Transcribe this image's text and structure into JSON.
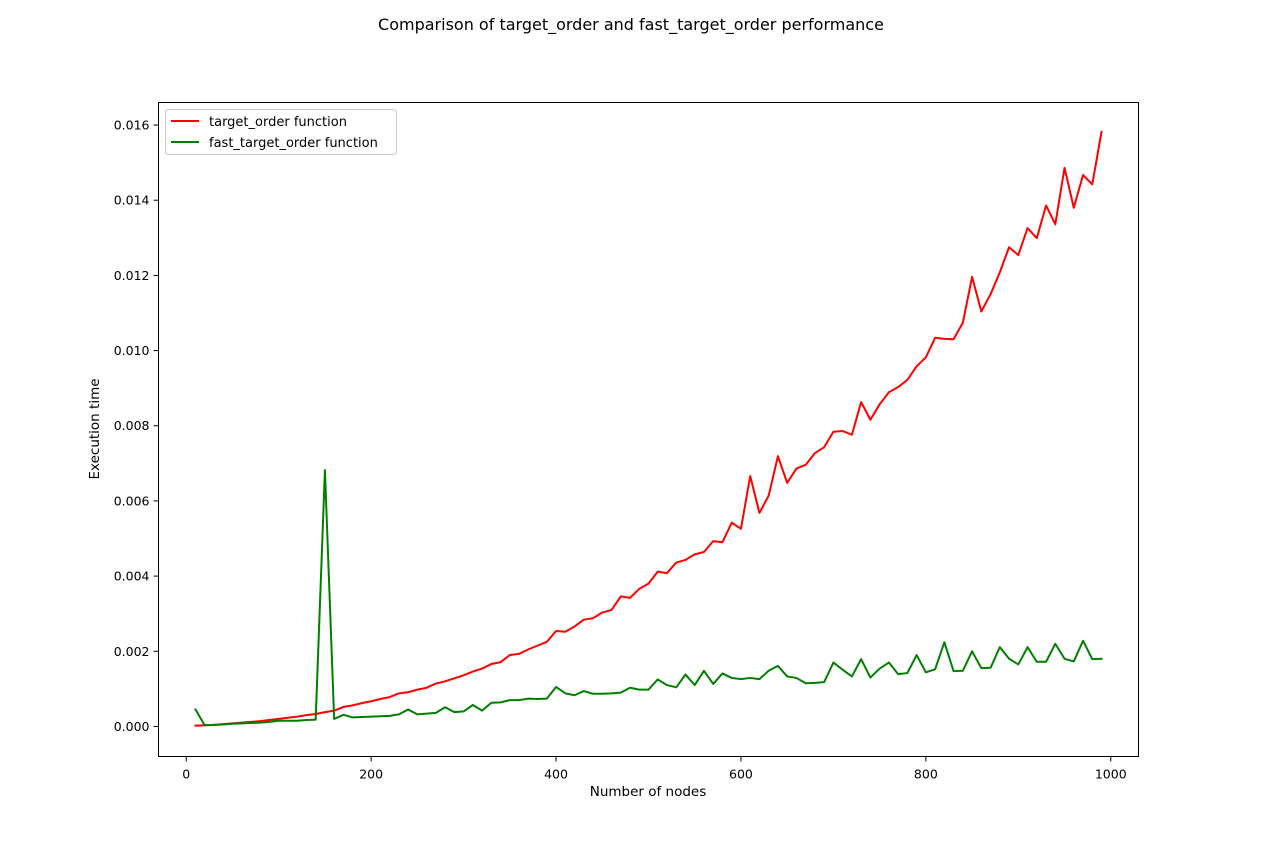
{
  "chart_data": {
    "type": "line",
    "title": "Comparison of target_order and fast_target_order performance",
    "xlabel": "Number of nodes",
    "ylabel": "Execution time",
    "xlim": [
      -30,
      1030
    ],
    "ylim": [
      -0.0008,
      0.0166
    ],
    "xticks": [
      0,
      200,
      400,
      600,
      800,
      1000
    ],
    "xtick_labels": [
      "0",
      "200",
      "400",
      "600",
      "800",
      "1000"
    ],
    "yticks": [
      0.0,
      0.002,
      0.004,
      0.006,
      0.008,
      0.01,
      0.012,
      0.014,
      0.016
    ],
    "ytick_labels": [
      "0.000",
      "0.002",
      "0.004",
      "0.006",
      "0.008",
      "0.010",
      "0.012",
      "0.014",
      "0.016"
    ],
    "grid": false,
    "legend_position": "upper-left",
    "x": [
      10,
      20,
      30,
      40,
      50,
      60,
      70,
      80,
      90,
      100,
      110,
      120,
      130,
      140,
      150,
      160,
      170,
      180,
      190,
      200,
      210,
      220,
      230,
      240,
      250,
      260,
      270,
      280,
      290,
      300,
      310,
      320,
      330,
      340,
      350,
      360,
      370,
      380,
      390,
      400,
      410,
      420,
      430,
      440,
      450,
      460,
      470,
      480,
      490,
      500,
      510,
      520,
      530,
      540,
      550,
      560,
      570,
      580,
      590,
      600,
      610,
      620,
      630,
      640,
      650,
      660,
      670,
      680,
      690,
      700,
      710,
      720,
      730,
      740,
      750,
      760,
      770,
      780,
      790,
      800,
      810,
      820,
      830,
      840,
      850,
      860,
      870,
      880,
      890,
      900,
      910,
      920,
      930,
      940,
      950,
      960,
      970,
      980,
      990
    ],
    "series": [
      {
        "name": "target_order function",
        "color": "#ff0000",
        "values": [
          2e-05,
          3e-05,
          4e-05,
          6e-05,
          8e-05,
          0.0001,
          0.00012,
          0.00014,
          0.00017,
          0.0002,
          0.00023,
          0.00026,
          0.0003,
          0.00033,
          0.00038,
          0.00042,
          0.00052,
          0.00056,
          0.00062,
          0.00067,
          0.00073,
          0.00078,
          0.00088,
          0.00091,
          0.00098,
          0.00103,
          0.00114,
          0.0012,
          0.00128,
          0.00136,
          0.00146,
          0.00154,
          0.00166,
          0.00171,
          0.0019,
          0.00193,
          0.00205,
          0.00215,
          0.00225,
          0.00254,
          0.00252,
          0.00266,
          0.00284,
          0.00288,
          0.00303,
          0.0031,
          0.00346,
          0.00342,
          0.00366,
          0.0038,
          0.00412,
          0.00408,
          0.00436,
          0.00443,
          0.00458,
          0.00464,
          0.00493,
          0.0049,
          0.00542,
          0.00526,
          0.00666,
          0.00568,
          0.00614,
          0.00719,
          0.00648,
          0.00686,
          0.00696,
          0.00727,
          0.00743,
          0.00784,
          0.00786,
          0.00776,
          0.00863,
          0.00816,
          0.00857,
          0.00889,
          0.00903,
          0.00922,
          0.00958,
          0.00982,
          0.01034,
          0.01031,
          0.0103,
          0.01074,
          0.01196,
          0.01104,
          0.0115,
          0.01208,
          0.01275,
          0.01254,
          0.01326,
          0.01299,
          0.01386,
          0.01336,
          0.01486,
          0.0138,
          0.01467,
          0.01442,
          0.01582
        ]
      },
      {
        "name": "fast_target_order function",
        "color": "#008000",
        "values": [
          0.00045,
          3e-05,
          4e-05,
          5e-05,
          7e-05,
          8e-05,
          9e-05,
          0.0001,
          0.00012,
          0.00015,
          0.00015,
          0.00015,
          0.00017,
          0.00018,
          0.00682,
          0.0002,
          0.00031,
          0.00024,
          0.00025,
          0.00026,
          0.00027,
          0.00028,
          0.00032,
          0.00045,
          0.00032,
          0.00034,
          0.00036,
          0.00051,
          0.00038,
          0.0004,
          0.00057,
          0.00042,
          0.00063,
          0.00064,
          0.0007,
          0.0007,
          0.00074,
          0.00073,
          0.00074,
          0.00105,
          0.00088,
          0.00083,
          0.00094,
          0.00087,
          0.00087,
          0.00088,
          0.0009,
          0.00103,
          0.00098,
          0.00098,
          0.00125,
          0.0011,
          0.00104,
          0.00138,
          0.0011,
          0.00148,
          0.00113,
          0.00141,
          0.00129,
          0.00126,
          0.00129,
          0.00126,
          0.00148,
          0.00161,
          0.00133,
          0.00129,
          0.00115,
          0.00116,
          0.00118,
          0.0017,
          0.00151,
          0.00133,
          0.00179,
          0.0013,
          0.00154,
          0.0017,
          0.00139,
          0.00142,
          0.0019,
          0.00144,
          0.00152,
          0.00224,
          0.00147,
          0.00148,
          0.002,
          0.00155,
          0.00156,
          0.00211,
          0.0018,
          0.00165,
          0.00211,
          0.00172,
          0.00172,
          0.0022,
          0.0018,
          0.00173,
          0.00228,
          0.00179,
          0.0018
        ]
      }
    ]
  }
}
